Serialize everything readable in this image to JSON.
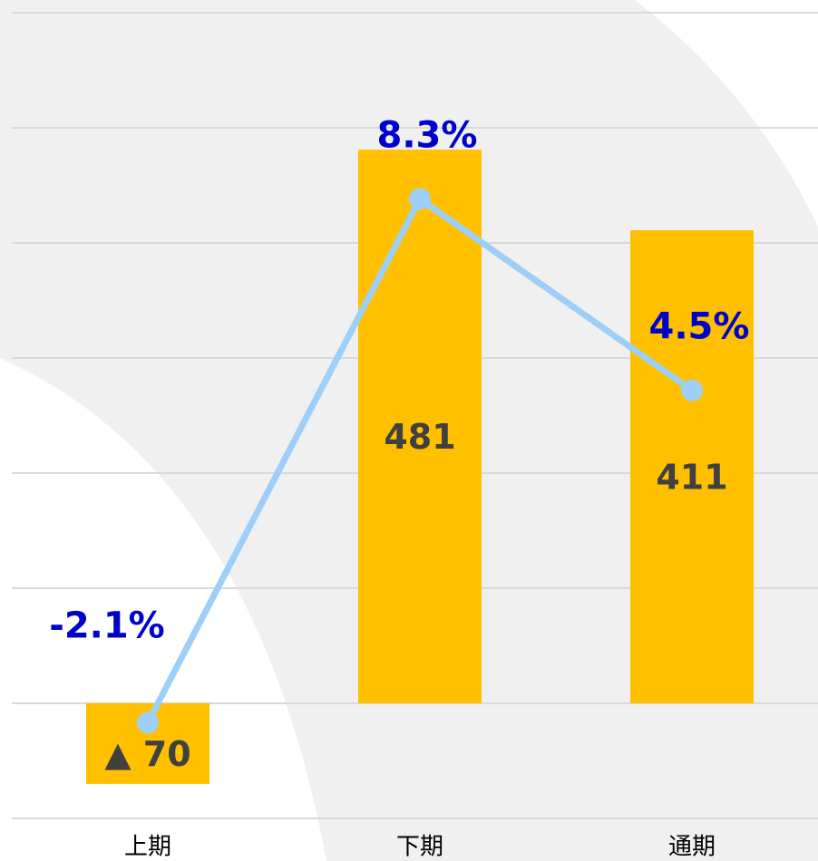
{
  "chart_data": {
    "type": "combo",
    "categories": [
      "上期",
      "下期",
      "通期"
    ],
    "series": [
      {
        "type": "bar",
        "color": "#FFC000",
        "values": [
          -70,
          481,
          411
        ],
        "value_labels": [
          "▲ 70",
          "481",
          "411"
        ]
      },
      {
        "type": "line",
        "axis": "y2",
        "color": "#9DCFF8",
        "values": [
          -2.1,
          8.3,
          4.5
        ],
        "value_labels": [
          "-2.1%",
          "8.3%",
          "4.5%"
        ]
      }
    ],
    "ylim": [
      -100,
      600
    ],
    "yticks": [
      -100,
      0,
      100,
      200,
      300,
      400,
      500,
      600
    ],
    "y2lim": [
      -4,
      12
    ],
    "grid": true
  }
}
